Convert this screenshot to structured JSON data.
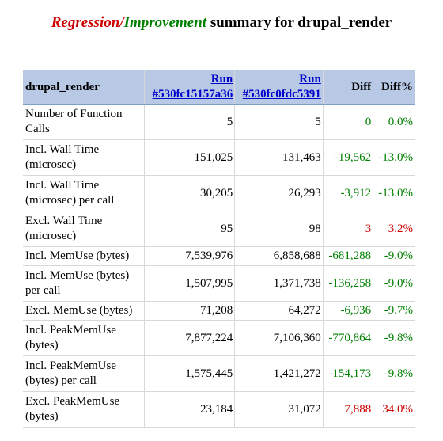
{
  "title": {
    "regression": "Regression",
    "slash": "/",
    "improvement": "Improvement",
    "rest": " summary for drupal_render"
  },
  "table": {
    "headers": {
      "name": "drupal_render",
      "run1_line1": "Run",
      "run1_line2": "#530fc15157a36",
      "run2_line1": "Run",
      "run2_line2": "#530fc0fdc5391",
      "diff": "Diff",
      "diffpct": "Diff%"
    },
    "rows": [
      {
        "name": "Number of Function Calls",
        "run1": "5",
        "run2": "5",
        "diff": "0",
        "diffpct": "0.0%",
        "status": "improvement",
        "tall": true,
        "group_start": false
      },
      {
        "name": "Incl. Wall Time (microsec)",
        "run1": "151,025",
        "run2": "131,463",
        "diff": "-19,562",
        "diffpct": "-13.0%",
        "status": "improvement",
        "tall": true,
        "group_start": false
      },
      {
        "name": "Incl. Wall Time (microsec) per call",
        "run1": "30,205",
        "run2": "26,293",
        "diff": "-3,912",
        "diffpct": "-13.0%",
        "status": "improvement",
        "tall": true,
        "group_start": false
      },
      {
        "name": "Excl. Wall Time (microsec)",
        "run1": "95",
        "run2": "98",
        "diff": "3",
        "diffpct": "3.2%",
        "status": "regression",
        "tall": true,
        "group_start": false
      },
      {
        "name": "Incl. MemUse (bytes)",
        "run1": "7,539,976",
        "run2": "6,858,688",
        "diff": "-681,288",
        "diffpct": "-9.0%",
        "status": "improvement",
        "tall": false,
        "group_start": true
      },
      {
        "name": "Incl. MemUse (bytes) per call",
        "run1": "1,507,995",
        "run2": "1,371,738",
        "diff": "-136,258",
        "diffpct": "-9.0%",
        "status": "improvement",
        "tall": true,
        "group_start": false
      },
      {
        "name": "Excl. MemUse (bytes)",
        "run1": "71,208",
        "run2": "64,272",
        "diff": "-6,936",
        "diffpct": "-9.7%",
        "status": "improvement",
        "tall": false,
        "group_start": false
      },
      {
        "name": "Incl. PeakMemUse (bytes)",
        "run1": "7,877,224",
        "run2": "7,106,360",
        "diff": "-770,864",
        "diffpct": "-9.8%",
        "status": "improvement",
        "tall": true,
        "group_start": true
      },
      {
        "name": "Incl. PeakMemUse (bytes) per call",
        "run1": "1,575,445",
        "run2": "1,421,272",
        "diff": "-154,173",
        "diffpct": "-9.8%",
        "status": "improvement",
        "tall": true,
        "group_start": false
      },
      {
        "name": "Excl. PeakMemUse (bytes)",
        "run1": "23,184",
        "run2": "31,072",
        "diff": "7,888",
        "diffpct": "34.0%",
        "status": "regression",
        "tall": true,
        "group_start": false
      }
    ]
  },
  "colors": {
    "regression": "#cc0000",
    "improvement": "#008000",
    "link": "#0000cc",
    "header_bg": "#b8c9e6"
  }
}
